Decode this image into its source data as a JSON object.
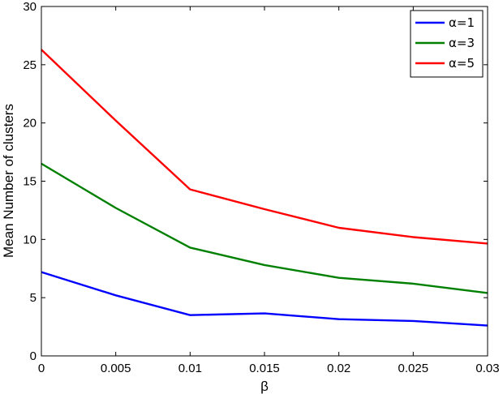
{
  "chart_data": {
    "type": "line",
    "xlabel": "β",
    "ylabel": "Mean Number of clusters",
    "xlim": [
      0,
      0.03
    ],
    "ylim": [
      0,
      30
    ],
    "x": [
      0,
      0.005,
      0.01,
      0.015,
      0.02,
      0.025,
      0.03
    ],
    "x_tick_labels": [
      "0",
      "0.005",
      "0.01",
      "0.015",
      "0.02",
      "0.025",
      "0.03"
    ],
    "y_ticks": [
      0,
      5,
      10,
      15,
      20,
      25,
      30
    ],
    "grid": false,
    "legend_position": "top-right",
    "series": [
      {
        "name": "α=1",
        "color": "#0000ff",
        "values": [
          7.2,
          5.2,
          3.5,
          3.65,
          3.15,
          3.0,
          2.6
        ]
      },
      {
        "name": "α=3",
        "color": "#008000",
        "values": [
          16.5,
          12.7,
          9.3,
          7.8,
          6.7,
          6.2,
          5.4
        ]
      },
      {
        "name": "α=5",
        "color": "#ff0000",
        "values": [
          26.3,
          20.2,
          14.3,
          12.6,
          11.0,
          10.2,
          9.65
        ]
      }
    ]
  }
}
